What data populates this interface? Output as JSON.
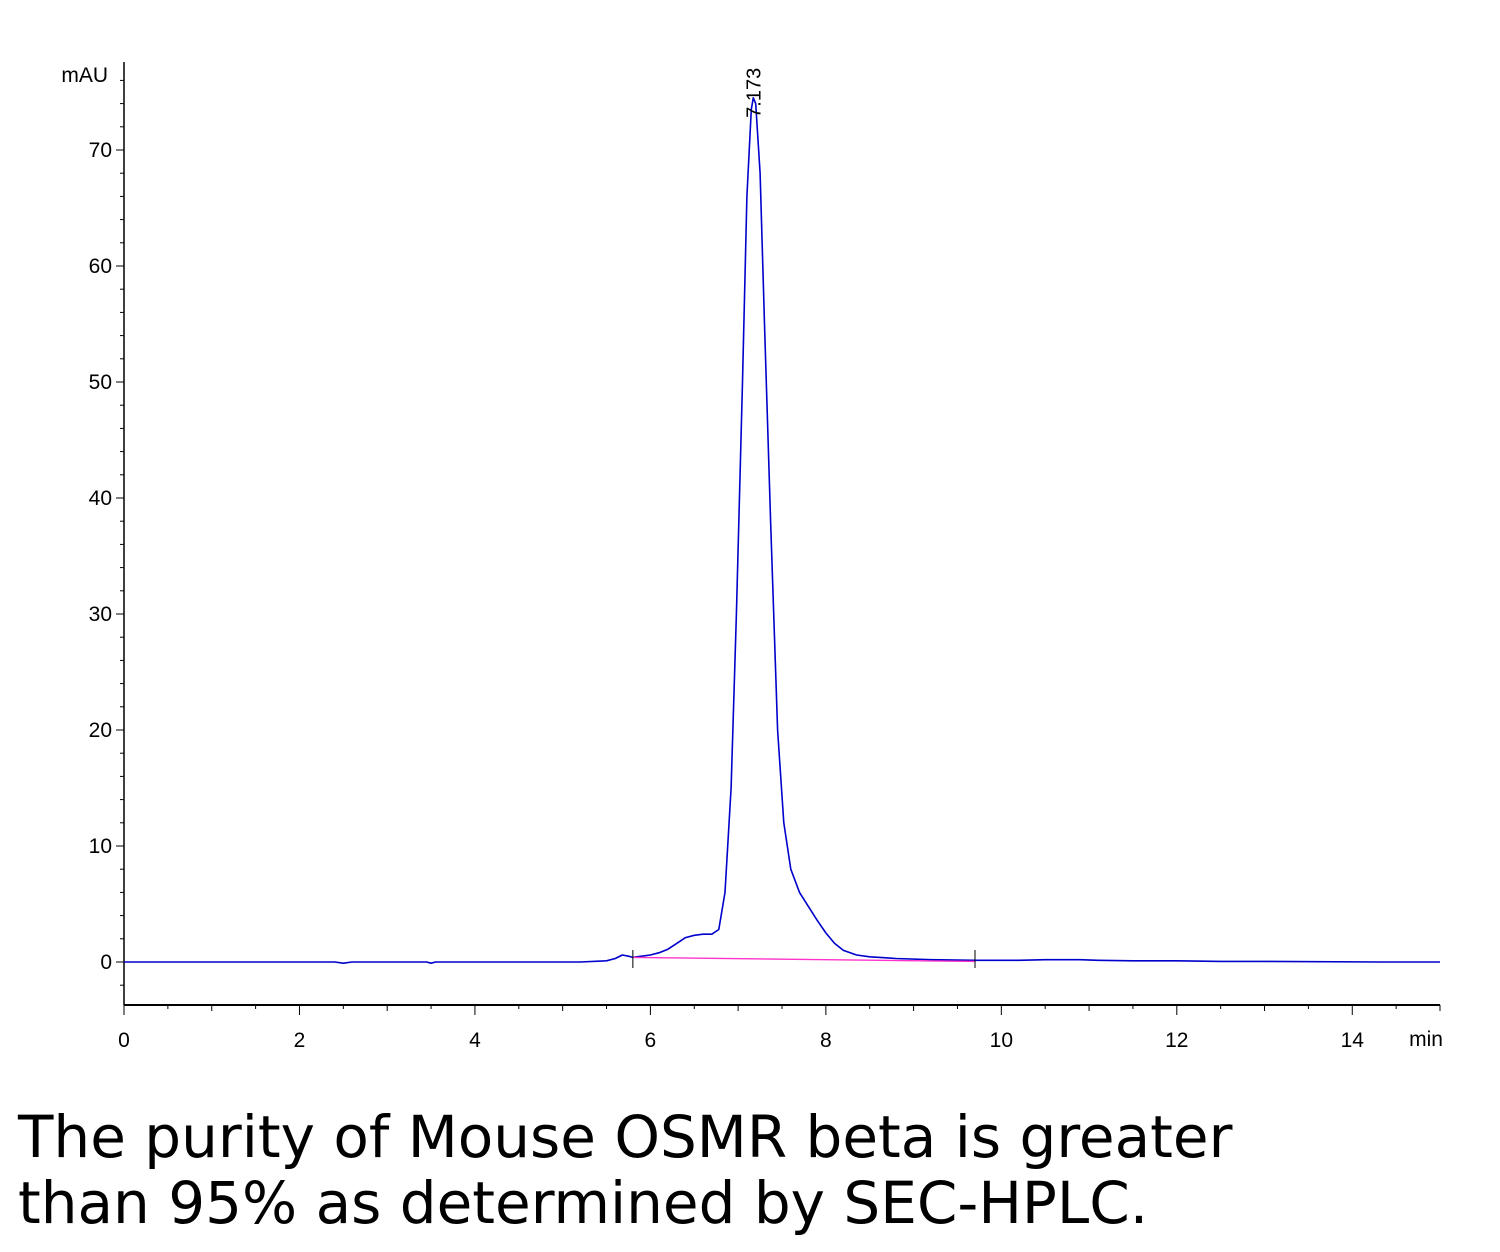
{
  "chart_data": {
    "type": "line",
    "title": "",
    "xlabel": "",
    "ylabel": "",
    "x_unit": "min",
    "y_unit": "mAU",
    "xlim": [
      0,
      15
    ],
    "ylim": [
      -3.8,
      78
    ],
    "x_ticks": [
      0,
      2,
      4,
      6,
      8,
      10,
      12,
      14
    ],
    "y_ticks": [
      0,
      10,
      20,
      30,
      40,
      50,
      60,
      70
    ],
    "grid": false,
    "series": [
      {
        "color": "#0000cc",
        "points": [
          [
            0,
            0.0
          ],
          [
            2.4,
            0.0
          ],
          [
            2.5,
            -0.1
          ],
          [
            2.6,
            0.0
          ],
          [
            3.45,
            0.0
          ],
          [
            3.5,
            -0.1
          ],
          [
            3.55,
            0.0
          ],
          [
            5.2,
            0.0
          ],
          [
            5.5,
            0.1
          ],
          [
            5.6,
            0.3
          ],
          [
            5.68,
            0.6
          ],
          [
            5.75,
            0.5
          ],
          [
            5.8,
            0.4
          ],
          [
            5.9,
            0.5
          ],
          [
            6.0,
            0.6
          ],
          [
            6.1,
            0.8
          ],
          [
            6.2,
            1.1
          ],
          [
            6.3,
            1.6
          ],
          [
            6.4,
            2.1
          ],
          [
            6.5,
            2.3
          ],
          [
            6.6,
            2.4
          ],
          [
            6.7,
            2.4
          ],
          [
            6.78,
            2.8
          ],
          [
            6.85,
            6.0
          ],
          [
            6.92,
            15.0
          ],
          [
            6.98,
            30.0
          ],
          [
            7.05,
            50.0
          ],
          [
            7.1,
            66.0
          ],
          [
            7.15,
            73.5
          ],
          [
            7.173,
            74.5
          ],
          [
            7.2,
            74.0
          ],
          [
            7.25,
            68.0
          ],
          [
            7.3,
            55.0
          ],
          [
            7.37,
            38.0
          ],
          [
            7.45,
            20.0
          ],
          [
            7.52,
            12.0
          ],
          [
            7.6,
            8.0
          ],
          [
            7.7,
            6.0
          ],
          [
            7.8,
            4.8
          ],
          [
            7.9,
            3.6
          ],
          [
            8.0,
            2.5
          ],
          [
            8.1,
            1.6
          ],
          [
            8.2,
            1.0
          ],
          [
            8.35,
            0.6
          ],
          [
            8.5,
            0.45
          ],
          [
            8.8,
            0.3
          ],
          [
            9.2,
            0.2
          ],
          [
            9.7,
            0.15
          ],
          [
            10.2,
            0.15
          ],
          [
            10.5,
            0.2
          ],
          [
            10.9,
            0.2
          ],
          [
            11.1,
            0.15
          ],
          [
            11.5,
            0.1
          ],
          [
            12.0,
            0.1
          ],
          [
            12.5,
            0.05
          ],
          [
            13.0,
            0.05
          ],
          [
            14.3,
            0.0
          ],
          [
            15,
            0.0
          ]
        ]
      },
      {
        "color": "#ff33cc",
        "points": [
          [
            5.8,
            0.4
          ],
          [
            9.7,
            0.05
          ]
        ]
      }
    ],
    "peak_labels": [
      {
        "label": "7.173",
        "x": 7.173,
        "y": 74.5
      }
    ],
    "integration_markers": [
      5.8,
      9.7
    ]
  },
  "caption": {
    "line1": "The purity of Mouse OSMR beta is greater",
    "line2": "than 95% as determined by SEC-HPLC."
  }
}
